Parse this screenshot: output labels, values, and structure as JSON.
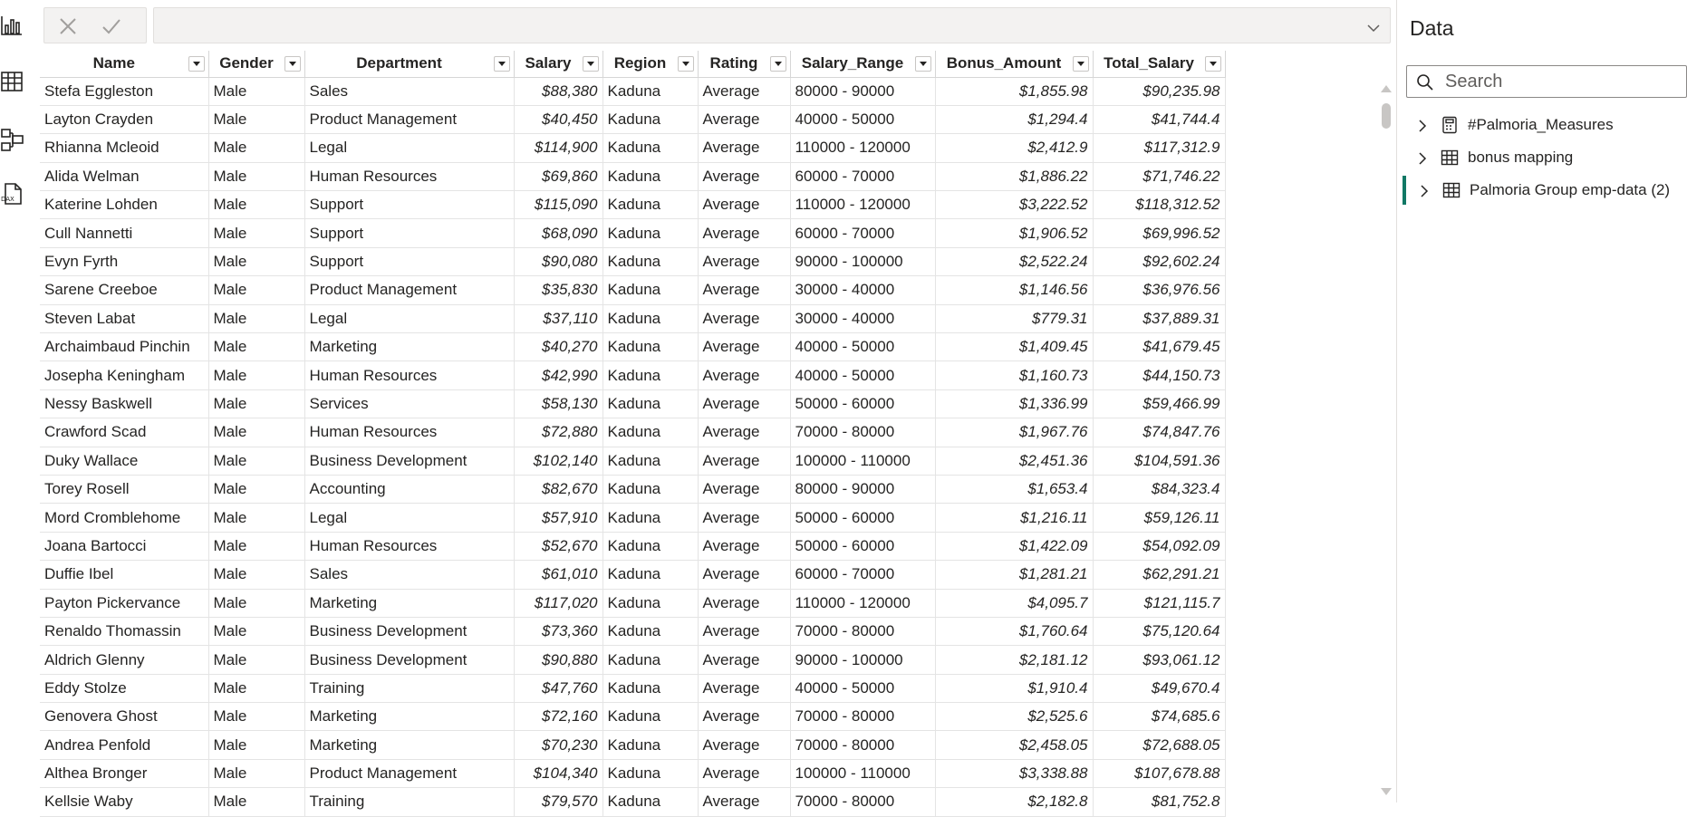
{
  "rail": {
    "icons": [
      "report-view-icon",
      "table-view-icon",
      "model-view-icon",
      "dax-query-view-icon"
    ]
  },
  "formula_bar": {
    "value": ""
  },
  "table": {
    "columns": [
      "Name",
      "Gender",
      "Department",
      "Salary",
      "Region",
      "Rating",
      "Salary_Range",
      "Bonus_Amount",
      "Total_Salary"
    ],
    "rows": [
      [
        "Stefa Eggleston",
        "Male",
        "Sales",
        "$88,380",
        "Kaduna",
        "Average",
        "80000 - 90000",
        "$1,855.98",
        "$90,235.98"
      ],
      [
        "Layton Crayden",
        "Male",
        "Product Management",
        "$40,450",
        "Kaduna",
        "Average",
        "40000 - 50000",
        "$1,294.4",
        "$41,744.4"
      ],
      [
        "Rhianna Mcleoid",
        "Male",
        "Legal",
        "$114,900",
        "Kaduna",
        "Average",
        "110000 - 120000",
        "$2,412.9",
        "$117,312.9"
      ],
      [
        "Alida Welman",
        "Male",
        "Human Resources",
        "$69,860",
        "Kaduna",
        "Average",
        "60000 - 70000",
        "$1,886.22",
        "$71,746.22"
      ],
      [
        "Katerine Lohden",
        "Male",
        "Support",
        "$115,090",
        "Kaduna",
        "Average",
        "110000 - 120000",
        "$3,222.52",
        "$118,312.52"
      ],
      [
        "Cull Nannetti",
        "Male",
        "Support",
        "$68,090",
        "Kaduna",
        "Average",
        "60000 - 70000",
        "$1,906.52",
        "$69,996.52"
      ],
      [
        "Evyn Fyrth",
        "Male",
        "Support",
        "$90,080",
        "Kaduna",
        "Average",
        "90000 - 100000",
        "$2,522.24",
        "$92,602.24"
      ],
      [
        "Sarene Creeboe",
        "Male",
        "Product Management",
        "$35,830",
        "Kaduna",
        "Average",
        "30000 - 40000",
        "$1,146.56",
        "$36,976.56"
      ],
      [
        "Steven Labat",
        "Male",
        "Legal",
        "$37,110",
        "Kaduna",
        "Average",
        "30000 - 40000",
        "$779.31",
        "$37,889.31"
      ],
      [
        "Archaimbaud Pinchin",
        "Male",
        "Marketing",
        "$40,270",
        "Kaduna",
        "Average",
        "40000 - 50000",
        "$1,409.45",
        "$41,679.45"
      ],
      [
        "Josepha Keningham",
        "Male",
        "Human Resources",
        "$42,990",
        "Kaduna",
        "Average",
        "40000 - 50000",
        "$1,160.73",
        "$44,150.73"
      ],
      [
        "Nessy Baskwell",
        "Male",
        "Services",
        "$58,130",
        "Kaduna",
        "Average",
        "50000 - 60000",
        "$1,336.99",
        "$59,466.99"
      ],
      [
        "Crawford Scad",
        "Male",
        "Human Resources",
        "$72,880",
        "Kaduna",
        "Average",
        "70000 - 80000",
        "$1,967.76",
        "$74,847.76"
      ],
      [
        "Duky Wallace",
        "Male",
        "Business Development",
        "$102,140",
        "Kaduna",
        "Average",
        "100000 - 110000",
        "$2,451.36",
        "$104,591.36"
      ],
      [
        "Torey Rosell",
        "Male",
        "Accounting",
        "$82,670",
        "Kaduna",
        "Average",
        "80000 - 90000",
        "$1,653.4",
        "$84,323.4"
      ],
      [
        "Mord Cromblehome",
        "Male",
        "Legal",
        "$57,910",
        "Kaduna",
        "Average",
        "50000 - 60000",
        "$1,216.11",
        "$59,126.11"
      ],
      [
        "Joana Bartocci",
        "Male",
        "Human Resources",
        "$52,670",
        "Kaduna",
        "Average",
        "50000 - 60000",
        "$1,422.09",
        "$54,092.09"
      ],
      [
        "Duffie Ibel",
        "Male",
        "Sales",
        "$61,010",
        "Kaduna",
        "Average",
        "60000 - 70000",
        "$1,281.21",
        "$62,291.21"
      ],
      [
        "Payton Pickervance",
        "Male",
        "Marketing",
        "$117,020",
        "Kaduna",
        "Average",
        "110000 - 120000",
        "$4,095.7",
        "$121,115.7"
      ],
      [
        "Renaldo Thomassin",
        "Male",
        "Business Development",
        "$73,360",
        "Kaduna",
        "Average",
        "70000 - 80000",
        "$1,760.64",
        "$75,120.64"
      ],
      [
        "Aldrich Glenny",
        "Male",
        "Business Development",
        "$90,880",
        "Kaduna",
        "Average",
        "90000 - 100000",
        "$2,181.12",
        "$93,061.12"
      ],
      [
        "Eddy Stolze",
        "Male",
        "Training",
        "$47,760",
        "Kaduna",
        "Average",
        "40000 - 50000",
        "$1,910.4",
        "$49,670.4"
      ],
      [
        "Genovera Ghost",
        "Male",
        "Marketing",
        "$72,160",
        "Kaduna",
        "Average",
        "70000 - 80000",
        "$2,525.6",
        "$74,685.6"
      ],
      [
        "Andrea Penfold",
        "Male",
        "Marketing",
        "$70,230",
        "Kaduna",
        "Average",
        "70000 - 80000",
        "$2,458.05",
        "$72,688.05"
      ],
      [
        "Althea Bronger",
        "Male",
        "Product Management",
        "$104,340",
        "Kaduna",
        "Average",
        "100000 - 110000",
        "$3,338.88",
        "$107,678.88"
      ],
      [
        "Kellsie Waby",
        "Male",
        "Training",
        "$79,570",
        "Kaduna",
        "Average",
        "70000 - 80000",
        "$2,182.8",
        "$81,752.8"
      ]
    ]
  },
  "data_pane": {
    "title": "Data",
    "search_placeholder": "Search",
    "items": [
      {
        "label": "#Palmoria_Measures",
        "icon": "calculator-icon"
      },
      {
        "label": "bonus mapping",
        "icon": "table-icon"
      },
      {
        "label": "Palmoria Group emp-data (2)",
        "icon": "table-icon"
      }
    ]
  },
  "colors": {
    "accent": "#117865",
    "border": "#e1dfdd",
    "text": "#252423"
  }
}
